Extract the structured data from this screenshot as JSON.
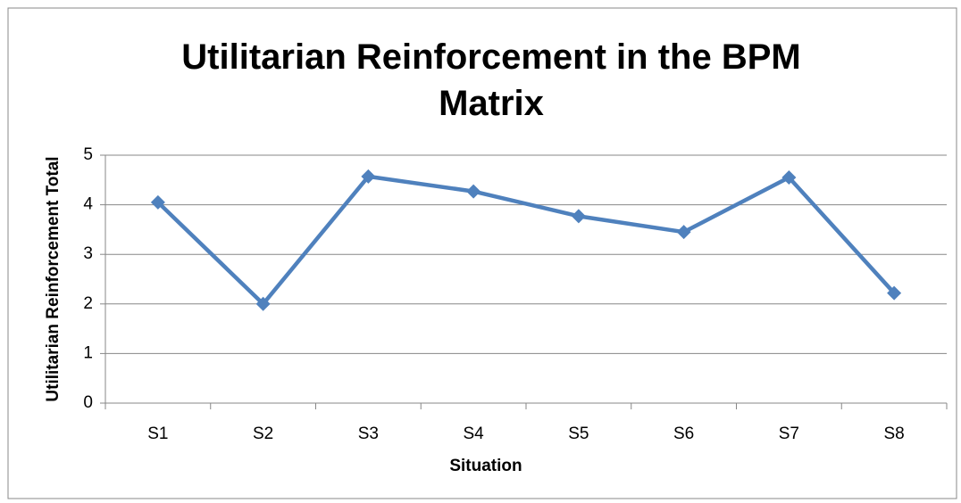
{
  "chart_data": {
    "type": "line",
    "title": "Utilitarian Reinforcement in the BPM Matrix",
    "x_label": "Situation",
    "y_label": "Utilitarian Reinforcement Total",
    "categories": [
      "S1",
      "S2",
      "S3",
      "S4",
      "S5",
      "S6",
      "S7",
      "S8"
    ],
    "series": [
      {
        "name": "Utilitarian Reinforcement Total",
        "color": "#4f81bd",
        "values": [
          4.05,
          2.0,
          4.57,
          4.27,
          3.77,
          3.45,
          4.55,
          2.22
        ]
      }
    ],
    "ylim": [
      0,
      5
    ],
    "yticks": [
      0,
      1,
      2,
      3,
      4,
      5
    ],
    "grid": true,
    "legend": false
  }
}
